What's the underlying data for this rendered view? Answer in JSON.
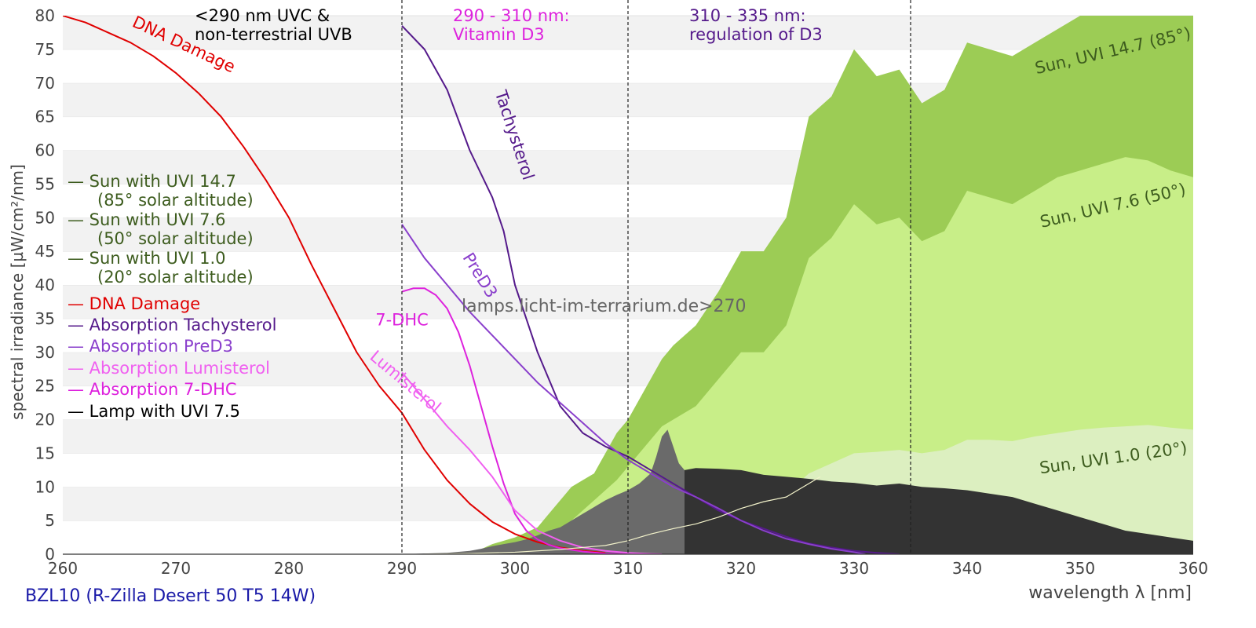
{
  "chart_data": {
    "type": "area",
    "xlabel": "wavelength λ [nm]",
    "ylabel": "spectral irradiance [µW/cm²/nm]",
    "xlim": [
      260,
      360
    ],
    "ylim": [
      0,
      80
    ],
    "x_ticks": [
      "260",
      "270",
      "280",
      "290",
      "300",
      "310",
      "320",
      "330",
      "340",
      "350",
      "360"
    ],
    "y_ticks": [
      "0",
      "5",
      "10",
      "15",
      "20",
      "25",
      "30",
      "35",
      "40",
      "45",
      "50",
      "55",
      "60",
      "65",
      "70",
      "75",
      "80"
    ],
    "grid": "horizontal bands",
    "legend_position": "left",
    "caption": "BZL10 (R-Zilla Desert 50 T5 14W)",
    "watermark": "lamps.licht-im-terrarium.de>270",
    "vlines": [
      290,
      310,
      335
    ],
    "region_labels": [
      {
        "lines": [
          "<290 nm UVC &",
          "non-terrestrial UVB"
        ],
        "color": "#000000"
      },
      {
        "lines": [
          "290 - 310 nm:",
          "Vitamin D3"
        ],
        "color": "#dd22dd"
      },
      {
        "lines": [
          "310 - 335 nm:",
          "regulation of D3"
        ],
        "color": "#551a8b"
      }
    ],
    "legend": [
      {
        "lines": [
          "— Sun with UVI 14.7",
          "(85° solar altitude)"
        ],
        "color": "#3d5c1e"
      },
      {
        "lines": [
          "— Sun with UVI 7.6",
          "(50° solar altitude)"
        ],
        "color": "#3d5c1e"
      },
      {
        "lines": [
          "— Sun with UVI 1.0",
          "(20° solar altitude)"
        ],
        "color": "#3d5c1e"
      },
      {
        "lines": [
          "— DNA Damage"
        ],
        "color": "#e00000"
      },
      {
        "lines": [
          "— Absorption Tachysterol"
        ],
        "color": "#551a8b"
      },
      {
        "lines": [
          "— Absorption PreD3"
        ],
        "color": "#8a3fcc"
      },
      {
        "lines": [
          "— Absorption Lumisterol"
        ],
        "color": "#f060f0"
      },
      {
        "lines": [
          "— Absorption 7-DHC"
        ],
        "color": "#dd22dd"
      },
      {
        "lines": [
          "— Lamp with UVI 7.5"
        ],
        "color": "#000000"
      }
    ],
    "series": [
      {
        "name": "Sun, UVI 14.7 (85°)",
        "kind": "area",
        "color": "#9ccc55",
        "label_color": "#3d5c1e",
        "label_at": [
          353,
          74,
          -13
        ],
        "x": [
          296,
          298,
          300,
          302,
          303,
          304,
          305,
          306,
          307,
          308,
          309,
          310,
          311,
          312,
          313,
          314,
          316,
          318,
          320,
          322,
          324,
          326,
          328,
          330,
          332,
          334,
          336,
          338,
          340,
          342,
          344,
          346,
          348,
          350,
          352,
          354,
          355,
          356,
          358,
          360
        ],
        "y": [
          0,
          1.5,
          2.5,
          4,
          6,
          8,
          10,
          11,
          12,
          15,
          18,
          20,
          23,
          26,
          29,
          31,
          34,
          39,
          45,
          45,
          50,
          65,
          68,
          75,
          71,
          72,
          67,
          69,
          76,
          75,
          74,
          76,
          78,
          80,
          82,
          83,
          84,
          83,
          81,
          80
        ]
      },
      {
        "name": "Sun, UVI 7.6 (50°)",
        "kind": "area",
        "color": "#c8ee88",
        "label_color": "#3d5c1e",
        "label_at": [
          353,
          51,
          -13
        ],
        "x": [
          296,
          298,
          300,
          302,
          304,
          305,
          306,
          307,
          308,
          309,
          310,
          311,
          312,
          313,
          314,
          316,
          318,
          320,
          322,
          324,
          326,
          328,
          330,
          332,
          334,
          336,
          338,
          340,
          342,
          344,
          346,
          348,
          350,
          352,
          354,
          356,
          358,
          360
        ],
        "y": [
          0,
          0.5,
          1,
          2,
          3.5,
          5,
          6.5,
          8,
          9.5,
          11,
          13,
          15,
          17,
          19,
          20,
          22,
          26,
          30,
          30,
          34,
          44,
          47,
          52,
          49,
          50,
          46.5,
          48,
          54,
          53,
          52,
          54,
          56,
          57,
          58,
          59,
          58.5,
          57,
          56
        ]
      },
      {
        "name": "Sun, UVI 1.0 (20°)",
        "kind": "area",
        "color": "#dcefc0",
        "label_color": "#3d5c1e",
        "label_at": [
          353,
          13.5,
          -8
        ],
        "x": [
          298,
          300,
          302,
          304,
          306,
          308,
          310,
          312,
          314,
          316,
          318,
          320,
          322,
          324,
          326,
          328,
          330,
          332,
          334,
          336,
          338,
          340,
          342,
          344,
          346,
          348,
          350,
          352,
          354,
          356,
          358,
          360
        ],
        "y": [
          0,
          0.2,
          0.5,
          0.8,
          1.2,
          1.7,
          2.2,
          3,
          3.8,
          4.5,
          5.5,
          7,
          8,
          9,
          12,
          13.5,
          15,
          15.2,
          15.5,
          15,
          15.5,
          17,
          17,
          16.8,
          17.5,
          18,
          18.5,
          18.8,
          19,
          19.2,
          18.8,
          18.5
        ]
      },
      {
        "name": "Lamp with UVI 7.5 (UVC/UVB part)",
        "kind": "area",
        "color": "#6a6a6a",
        "x": [
          290,
          294,
          296,
          297,
          298,
          299,
          300,
          301,
          302,
          303,
          304,
          305,
          306,
          307,
          308,
          309,
          310,
          311,
          312,
          312.5,
          313,
          313.5,
          314,
          314.5,
          315
        ],
        "y": [
          0,
          0.2,
          0.5,
          0.8,
          1.2,
          1.5,
          1.8,
          2.2,
          2.8,
          3.5,
          4,
          5,
          6,
          7,
          8,
          8.8,
          9.5,
          10.5,
          12,
          14.5,
          17.5,
          18.5,
          16,
          13.5,
          12.5
        ]
      },
      {
        "name": "Lamp with UVI 7.5 (UVA part)",
        "kind": "area",
        "color": "#333333",
        "x": [
          315,
          316,
          318,
          320,
          322,
          324,
          326,
          328,
          330,
          332,
          334,
          336,
          338,
          340,
          342,
          344,
          346,
          348,
          350,
          352,
          354,
          356,
          358,
          360
        ],
        "y": [
          12.5,
          12.8,
          12.7,
          12.5,
          11.8,
          11.5,
          11.2,
          10.8,
          10.6,
          10.2,
          10.5,
          10,
          9.8,
          9.5,
          9,
          8.5,
          7.5,
          6.5,
          5.5,
          4.5,
          3.5,
          3,
          2.5,
          2
        ]
      },
      {
        "name": "DNA Damage",
        "kind": "line",
        "color": "#e00000",
        "label_at": [
          270.5,
          75,
          25
        ],
        "x": [
          260,
          262,
          264,
          266,
          268,
          270,
          272,
          274,
          276,
          278,
          280,
          282,
          284,
          286,
          288,
          290,
          292,
          294,
          296,
          298,
          300,
          302,
          304,
          306,
          308
        ],
        "y": [
          80,
          79,
          77.5,
          76,
          74,
          71.5,
          68.5,
          65,
          60.5,
          55.5,
          50,
          43,
          36.5,
          30,
          25,
          21,
          15.5,
          11,
          7.5,
          4.8,
          3,
          1.8,
          1,
          0.5,
          0.2
        ]
      },
      {
        "name": "Tachysterol",
        "kind": "line",
        "color": "#551a8b",
        "label_at": [
          299.5,
          62,
          72
        ],
        "x": [
          290,
          292,
          294,
          296,
          298,
          299,
          300,
          302,
          304,
          306,
          308,
          310,
          312,
          314,
          316,
          318,
          320,
          322,
          324,
          326,
          328,
          330,
          332,
          334
        ],
        "y": [
          78.5,
          75,
          69,
          60,
          53,
          48,
          40,
          30,
          22,
          18,
          16,
          14.5,
          12.5,
          10.5,
          8.5,
          6.5,
          5,
          3.8,
          2.6,
          1.6,
          1,
          0.5,
          0.2,
          0
        ]
      },
      {
        "name": "PreD3",
        "kind": "line",
        "color": "#8a3fcc",
        "label_at": [
          296.5,
          41,
          58
        ],
        "x": [
          290,
          292,
          294,
          296,
          298,
          300,
          302,
          304,
          306,
          308,
          310,
          312,
          314,
          316,
          318,
          320,
          322,
          324,
          326,
          328,
          330,
          331
        ],
        "y": [
          49,
          44,
          40,
          36,
          32.5,
          29,
          25.5,
          22.5,
          19.5,
          16.5,
          14,
          12,
          10,
          8.5,
          6.8,
          5,
          3.5,
          2.3,
          1.5,
          0.8,
          0.3,
          0
        ]
      },
      {
        "name": "7-DHC",
        "kind": "line",
        "color": "#dd22dd",
        "label_at": [
          290,
          34,
          0
        ],
        "x": [
          290,
          291,
          292,
          293,
          294,
          295,
          296,
          297,
          298,
          299,
          300,
          301,
          302,
          303,
          304,
          306,
          308,
          310
        ],
        "y": [
          39,
          39.5,
          39.5,
          38.5,
          36.5,
          33,
          28,
          22,
          16,
          10.5,
          6,
          3.5,
          2.2,
          1.4,
          0.9,
          0.4,
          0.1,
          0
        ]
      },
      {
        "name": "Lumisterol",
        "kind": "line",
        "color": "#f060f0",
        "label_at": [
          290,
          25,
          40
        ],
        "x": [
          290,
          292,
          294,
          296,
          298,
          300,
          302,
          304,
          306,
          308,
          310,
          312,
          313
        ],
        "y": [
          27,
          23,
          19,
          15.5,
          11.5,
          6.5,
          3.5,
          2,
          1,
          0.5,
          0.2,
          0.05,
          0
        ]
      },
      {
        "name": "Lamp with UVI 7.5",
        "kind": "line",
        "color": "#f4f4cc",
        "width": 1.2,
        "x": [
          292,
          296,
          300,
          304,
          308,
          310,
          312,
          314,
          316,
          318,
          320,
          322,
          324,
          326,
          327
        ],
        "y": [
          0,
          0.1,
          0.3,
          0.7,
          1.3,
          2,
          3,
          3.8,
          4.5,
          5.5,
          6.8,
          7.8,
          8.5,
          10.5,
          11.5
        ]
      }
    ]
  }
}
